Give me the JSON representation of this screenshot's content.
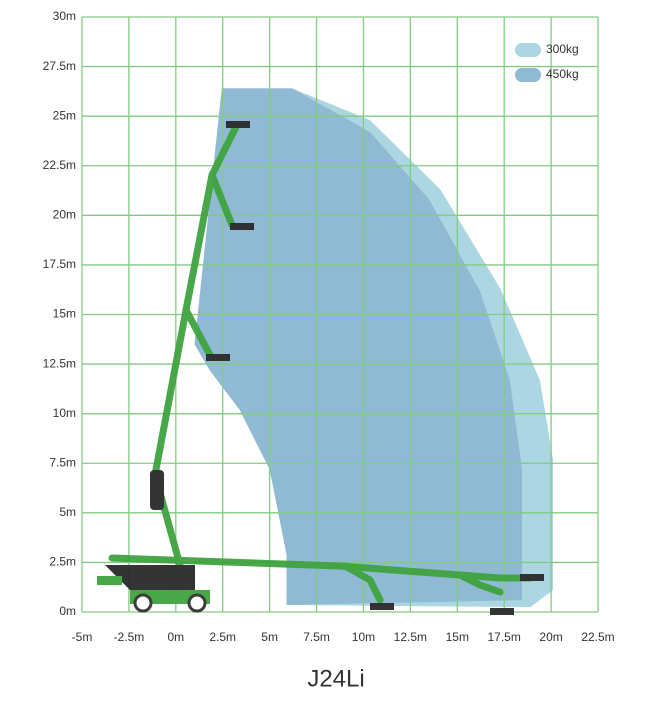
{
  "chart_data": {
    "type": "range",
    "title": "J24Li",
    "xlim": [
      -5,
      22.5
    ],
    "ylim": [
      0,
      30
    ],
    "xticks": [
      {
        "value": -5,
        "label": "-5m"
      },
      {
        "value": -2.5,
        "label": "-2.5m"
      },
      {
        "value": 0,
        "label": "0m"
      },
      {
        "value": 2.5,
        "label": "2.5m"
      },
      {
        "value": 5,
        "label": "5m"
      },
      {
        "value": 7.5,
        "label": "7.5m"
      },
      {
        "value": 10,
        "label": "10m"
      },
      {
        "value": 12.5,
        "label": "12.5m"
      },
      {
        "value": 15,
        "label": "15m"
      },
      {
        "value": 17.5,
        "label": "17.5m"
      },
      {
        "value": 20,
        "label": "20m"
      },
      {
        "value": 22.5,
        "label": "22.5m"
      }
    ],
    "yticks": [
      {
        "value": 0,
        "label": "0m"
      },
      {
        "value": 2.5,
        "label": "2.5m"
      },
      {
        "value": 5,
        "label": "5m"
      },
      {
        "value": 7.5,
        "label": "7.5m"
      },
      {
        "value": 10,
        "label": "10m"
      },
      {
        "value": 12.5,
        "label": "12.5m"
      },
      {
        "value": 15,
        "label": "15m"
      },
      {
        "value": 17.5,
        "label": "17.5m"
      },
      {
        "value": 20,
        "label": "20m"
      },
      {
        "value": 22.5,
        "label": "22.5m"
      },
      {
        "value": 25,
        "label": "25m"
      },
      {
        "value": 27.5,
        "label": "27.5m"
      },
      {
        "value": 30,
        "label": "30m"
      }
    ],
    "grid": true,
    "legend": "upper right",
    "series": [
      {
        "name": "300kg",
        "color": "#acd6e1",
        "x": [
          2.45,
          6.2,
          10.35,
          14.1,
          17.3,
          19.4,
          20.1,
          20.1,
          18.9,
          5.9,
          5.9,
          5.0,
          3.4,
          1.8,
          1.0
        ],
        "y": [
          26.4,
          26.4,
          24.8,
          21.3,
          16.3,
          11.7,
          7.7,
          1.1,
          0.25,
          0.35,
          2.9,
          7.2,
          10.2,
          12.2,
          13.5
        ]
      },
      {
        "name": "450kg",
        "color": "#90b9d3",
        "x": [
          2.45,
          6.2,
          10.35,
          13.5,
          16.2,
          17.8,
          18.45,
          18.45,
          5.9,
          5.9,
          5.0,
          3.4,
          1.8,
          1.0
        ],
        "y": [
          26.4,
          26.4,
          24.2,
          20.8,
          16.2,
          11.7,
          7.2,
          0.6,
          0.35,
          2.9,
          7.2,
          10.2,
          12.2,
          13.5
        ]
      }
    ]
  }
}
